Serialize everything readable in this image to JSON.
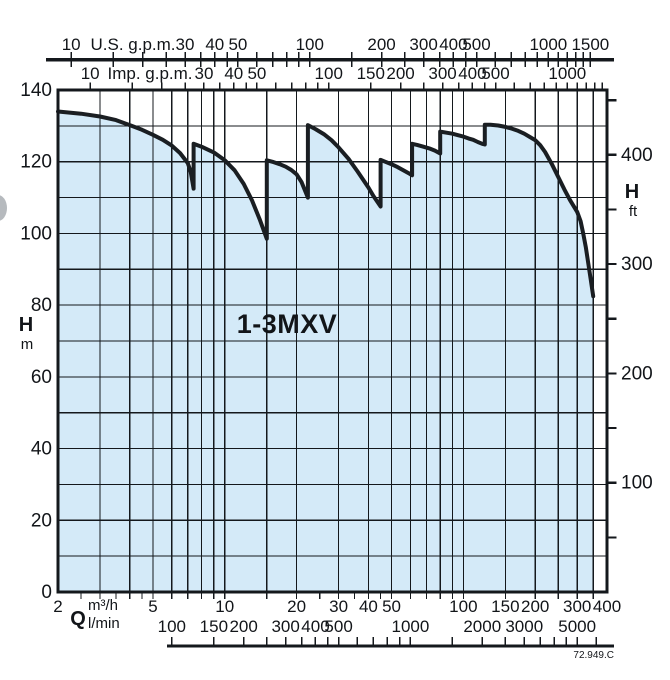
{
  "page": {
    "background": "#ffffff"
  },
  "labels": {
    "title": "1-3MXV",
    "doc_number": "72.949.C",
    "us_unit": "U.S. g.p.m.",
    "imp_unit": "Imp. g.p.m.",
    "q_symbol": "Q",
    "m3h_unit": "m³/h",
    "lmin_unit": "l/min",
    "left_h": "H",
    "left_m": "m",
    "right_h": "H",
    "right_ft": "ft"
  },
  "colors": {
    "fill": "#d4eaf8",
    "curve": "#1a1e22",
    "grid": "#14181c",
    "text": "#121519",
    "artifact_gray": "#b6babe"
  },
  "chart_data": {
    "type": "area",
    "title": "1-3MXV",
    "x_scale": "log",
    "x_range_m3h": [
      2,
      400
    ],
    "y_range_m": [
      0,
      140
    ],
    "y_grid_step_m": 10,
    "gridlines_x_m3h": [
      3,
      4,
      5,
      6,
      7,
      8,
      9,
      10,
      15,
      20,
      30,
      40,
      50,
      60,
      70,
      80,
      90,
      100,
      150,
      200,
      250,
      300,
      350
    ],
    "axes": {
      "top_outer": {
        "unit": "U.S. g.p.m.",
        "per_m3h": 4.403,
        "tick_values": [
          10,
          15,
          20,
          25,
          30,
          35,
          40,
          45,
          50,
          60,
          70,
          80,
          90,
          100,
          150,
          200,
          250,
          300,
          350,
          400,
          450,
          500,
          600,
          700,
          800,
          900,
          1000,
          1100,
          1200,
          1300,
          1400,
          1500
        ],
        "label_values": [
          10,
          30,
          40,
          50,
          100,
          200,
          300,
          400,
          500,
          1000,
          1500
        ]
      },
      "top_inner": {
        "unit": "Imp. g.p.m.",
        "per_m3h": 3.666,
        "tick_values": [
          10,
          15,
          20,
          25,
          30,
          35,
          40,
          45,
          50,
          60,
          70,
          80,
          90,
          100,
          150,
          200,
          250,
          300,
          350,
          400,
          450,
          500,
          600,
          700,
          800,
          900,
          1000,
          1100,
          1200,
          1300,
          1400
        ],
        "label_values": [
          10,
          30,
          40,
          50,
          100,
          150,
          200,
          300,
          400,
          500,
          1000
        ]
      },
      "bottom_inner": {
        "unit": "m³/h",
        "per_m3h": 1,
        "tick_values": [
          2.5,
          3,
          3.5,
          4,
          4.5,
          5,
          6,
          7,
          8,
          9,
          10,
          15,
          20,
          25,
          30,
          35,
          40,
          45,
          50,
          60,
          70,
          80,
          90,
          100,
          150,
          200,
          250,
          300,
          350
        ],
        "label_values": [
          2,
          5,
          10,
          20,
          30,
          40,
          50,
          100,
          150,
          200,
          300,
          400
        ]
      },
      "bottom_outer": {
        "unit": "l/min",
        "per_m3h": 16.6667,
        "tick_values": [
          100,
          150,
          200,
          250,
          300,
          350,
          400,
          450,
          500,
          600,
          700,
          800,
          900,
          1000,
          1500,
          2000,
          2500,
          3000,
          3500,
          4000,
          4500,
          5000,
          6000
        ],
        "label_values": [
          100,
          150,
          200,
          300,
          400,
          500,
          1000,
          2000,
          3000,
          5000
        ]
      },
      "left": {
        "symbol": "H",
        "unit": "m",
        "label_values": [
          0,
          20,
          40,
          60,
          80,
          100,
          120,
          140
        ]
      },
      "right": {
        "symbol": "H",
        "unit": "ft",
        "m_per_ft": 0.3048,
        "tick_values": [
          50,
          100,
          150,
          200,
          250,
          300,
          350,
          400,
          450
        ],
        "label_values": [
          100,
          200,
          300,
          400
        ]
      }
    },
    "envelope_Q_H": [
      [
        2,
        134
      ],
      [
        2.5,
        133.4
      ],
      [
        3,
        132.6
      ],
      [
        3.5,
        131.6
      ],
      [
        4,
        130.2
      ],
      [
        4.5,
        128.9
      ],
      [
        5,
        127.5
      ],
      [
        5.5,
        126.1
      ],
      [
        6,
        124.5
      ],
      [
        6.5,
        122.4
      ],
      [
        7,
        119.6
      ],
      [
        7.2,
        117.2
      ],
      [
        7.4,
        112.5
      ],
      [
        7.4,
        125
      ],
      [
        8,
        124.2
      ],
      [
        9,
        122.6
      ],
      [
        10,
        120.4
      ],
      [
        11,
        117.6
      ],
      [
        12,
        113.8
      ],
      [
        13,
        109.2
      ],
      [
        14,
        104
      ],
      [
        15,
        98.5
      ],
      [
        15,
        120.4
      ],
      [
        16,
        119.9
      ],
      [
        17,
        119.3
      ],
      [
        18,
        118.6
      ],
      [
        19,
        117.7
      ],
      [
        20,
        116.5
      ],
      [
        21,
        114.3
      ],
      [
        22.3,
        110
      ],
      [
        22.3,
        130.2
      ],
      [
        24,
        129.1
      ],
      [
        26,
        127.7
      ],
      [
        28,
        126
      ],
      [
        30,
        124
      ],
      [
        33,
        120.8
      ],
      [
        36,
        117.3
      ],
      [
        40,
        112.8
      ],
      [
        42,
        110.4
      ],
      [
        45,
        107.5
      ],
      [
        45,
        120.5
      ],
      [
        47,
        120
      ],
      [
        50,
        119.3
      ],
      [
        53,
        118.5
      ],
      [
        56,
        117.6
      ],
      [
        59,
        116.8
      ],
      [
        61,
        116.2
      ],
      [
        61,
        125
      ],
      [
        64,
        124.7
      ],
      [
        68,
        124.2
      ],
      [
        72,
        123.7
      ],
      [
        76,
        123.1
      ],
      [
        80,
        122.3
      ],
      [
        80,
        128.4
      ],
      [
        85,
        128.1
      ],
      [
        90,
        127.8
      ],
      [
        95,
        127.4
      ],
      [
        100,
        127
      ],
      [
        105,
        126.5
      ],
      [
        110,
        126.1
      ],
      [
        115,
        125.5
      ],
      [
        120,
        125
      ],
      [
        123,
        124.8
      ],
      [
        123,
        130.3
      ],
      [
        130,
        130.3
      ],
      [
        140,
        130.1
      ],
      [
        150,
        129.7
      ],
      [
        160,
        129.2
      ],
      [
        170,
        128.6
      ],
      [
        180,
        127.8
      ],
      [
        190,
        126.9
      ],
      [
        200,
        126
      ],
      [
        210,
        124.6
      ],
      [
        220,
        122.7
      ],
      [
        235,
        119.3
      ],
      [
        250,
        115.7
      ],
      [
        265,
        112.3
      ],
      [
        280,
        109.3
      ],
      [
        300,
        106
      ],
      [
        310,
        103.4
      ],
      [
        318,
        100
      ],
      [
        326,
        96.2
      ],
      [
        334,
        91.6
      ],
      [
        342,
        87
      ],
      [
        350,
        82.5
      ]
    ]
  }
}
